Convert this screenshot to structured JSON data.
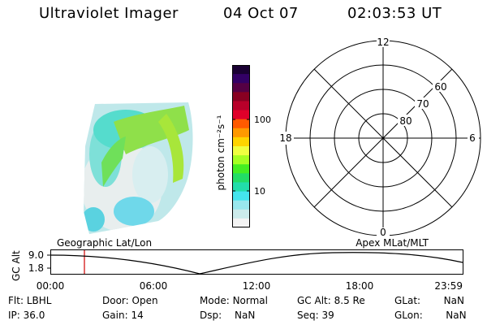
{
  "header": {
    "title": "Ultraviolet Imager",
    "date": "04 Oct 07",
    "time": "02:03:53 UT"
  },
  "colorbar": {
    "label": "photon cm⁻²s⁻¹",
    "ticks": [
      "100",
      "10"
    ],
    "colors": [
      "#1a0033",
      "#330066",
      "#550044",
      "#880022",
      "#b8002a",
      "#e0002a",
      "#ff5a00",
      "#ff9900",
      "#ffd400",
      "#f0ff40",
      "#a6ff22",
      "#44ee22",
      "#22dd66",
      "#22ddaa",
      "#44e5ee",
      "#99e8ee",
      "#ccebeb",
      "#f4f4f4"
    ]
  },
  "polar": {
    "mlt_labels": [
      "12",
      "18",
      "6",
      "0"
    ],
    "lat_labels": [
      "60",
      "70",
      "80"
    ]
  },
  "timeline": {
    "left_label": "Geographic Lat/Lon",
    "right_label": "Apex MLat/MLT",
    "y_axis_label": "GC Alt",
    "y_ticks": [
      "9.0",
      "1.8"
    ],
    "x_ticks": [
      "00:00",
      "06:00",
      "12:00",
      "18:00",
      "23:59"
    ],
    "marker_color": "#d00000"
  },
  "info": {
    "flt_label": "Flt:",
    "flt_value": "LBHL",
    "door_label": "Door:",
    "door_value": "Open",
    "mode_label": "Mode:",
    "mode_value": "Normal",
    "gcalt_label": "GC Alt:",
    "gcalt_value": "8.5 Re",
    "glat_label": "GLat:",
    "glat_value": "NaN",
    "ip_label": "IP:",
    "ip_value": "36.0",
    "gain_label": "Gain:",
    "gain_value": "14",
    "dsp_label": "Dsp:",
    "dsp_value": "NaN",
    "seq_label": "Seq:",
    "seq_value": "39",
    "glon_label": "GLon:",
    "glon_value": "NaN"
  }
}
